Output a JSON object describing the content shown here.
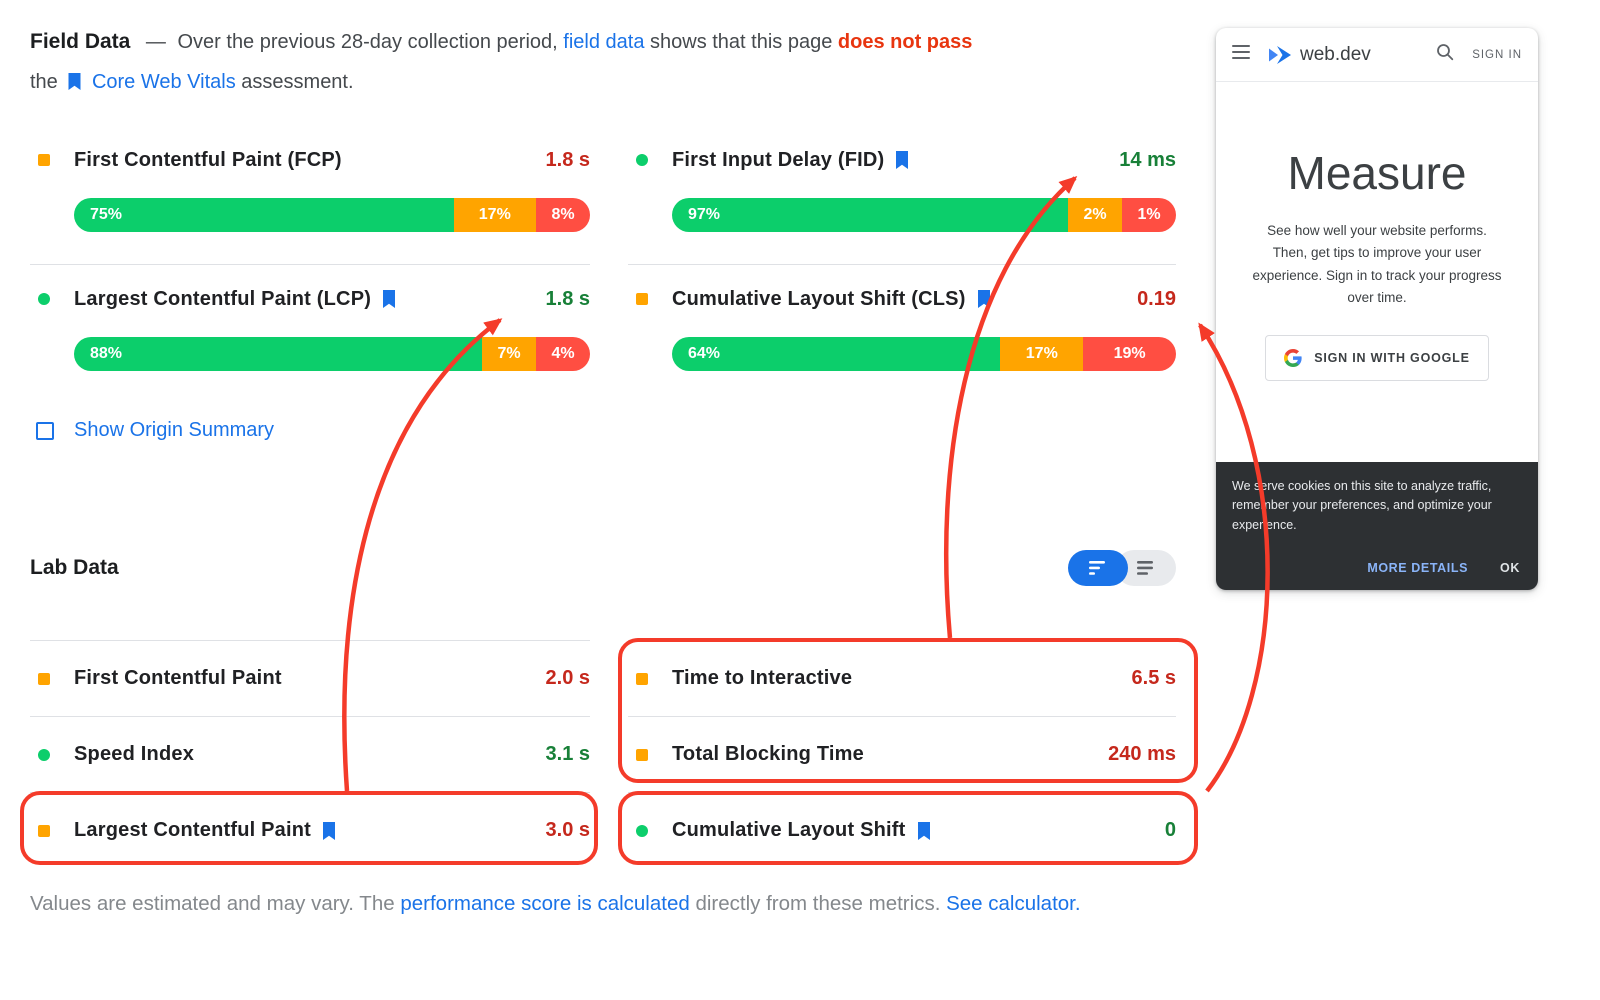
{
  "colors": {
    "accent_blue": "#1a73e8",
    "good_green": "#0cce6b",
    "average_orange": "#ffa400",
    "poor_red": "#ff4e42",
    "value_red": "#c5281c",
    "value_green": "#188038",
    "annotation_red": "#f43b2a"
  },
  "field_data": {
    "title": "Field Data",
    "desc": {
      "sep": "—",
      "line1_a": "Over the previous 28-day collection period,",
      "link_field_data": "field data",
      "line1_b": "shows that this page",
      "fail": "does not pass",
      "line2_a": "the",
      "link_cwv": "Core Web Vitals",
      "line2_b": "assessment."
    },
    "metrics": [
      {
        "name": "First Contentful Paint (FCP)",
        "value": "1.8 s",
        "status": "average",
        "dist": [
          {
            "label": "75%",
            "value": 75,
            "color": "green"
          },
          {
            "label": "17%",
            "value": 17,
            "color": "orange"
          },
          {
            "label": "8%",
            "value": 8,
            "color": "red"
          }
        ]
      },
      {
        "name": "Largest Contentful Paint (LCP)",
        "value": "1.8 s",
        "status": "good",
        "dist": [
          {
            "label": "88%",
            "value": 88,
            "color": "green"
          },
          {
            "label": "7%",
            "value": 7,
            "color": "orange"
          },
          {
            "label": "4%",
            "value": 4,
            "color": "red"
          }
        ]
      },
      {
        "name": "First Input Delay (FID)",
        "value": "14 ms",
        "status": "good",
        "dist": [
          {
            "label": "97%",
            "value": 97,
            "color": "green"
          },
          {
            "label": "2%",
            "value": 2,
            "color": "orange"
          },
          {
            "label": "1%",
            "value": 1,
            "color": "red"
          }
        ]
      },
      {
        "name": "Cumulative Layout Shift (CLS)",
        "value": "0.19",
        "status": "average",
        "dist": [
          {
            "label": "64%",
            "value": 64,
            "color": "green"
          },
          {
            "label": "17%",
            "value": 17,
            "color": "orange"
          },
          {
            "label": "19%",
            "value": 19,
            "color": "red"
          }
        ]
      }
    ],
    "origin_summary_label": "Show Origin Summary"
  },
  "lab_data": {
    "title": "Lab Data",
    "metrics": [
      {
        "name": "First Contentful Paint",
        "value": "2.0 s",
        "status": "average"
      },
      {
        "name": "Speed Index",
        "value": "3.1 s",
        "status": "good"
      },
      {
        "name": "Largest Contentful Paint",
        "value": "3.0 s",
        "status": "average"
      },
      {
        "name": "Time to Interactive",
        "value": "6.5 s",
        "status": "average"
      },
      {
        "name": "Total Blocking Time",
        "value": "240 ms",
        "status": "average"
      },
      {
        "name": "Cumulative Layout Shift",
        "value": "0",
        "status": "good"
      }
    ]
  },
  "footer": {
    "text_a": "Values are estimated and may vary. The",
    "link_perf": "performance score is calculated",
    "text_b": "directly from these metrics.",
    "link_calc": "See calculator."
  },
  "phone": {
    "logo_text": "web.dev",
    "sign_in": "SIGN IN",
    "heading": "Measure",
    "body": "See how well your website performs. Then, get tips to improve your user experience. Sign in to track your progress over time.",
    "google_button": "SIGN IN WITH GOOGLE",
    "cookie": {
      "text": "We serve cookies on this site to analyze traffic, remember your preferences, and optimize your experience.",
      "more_details": "MORE DETAILS",
      "ok": "OK"
    }
  }
}
